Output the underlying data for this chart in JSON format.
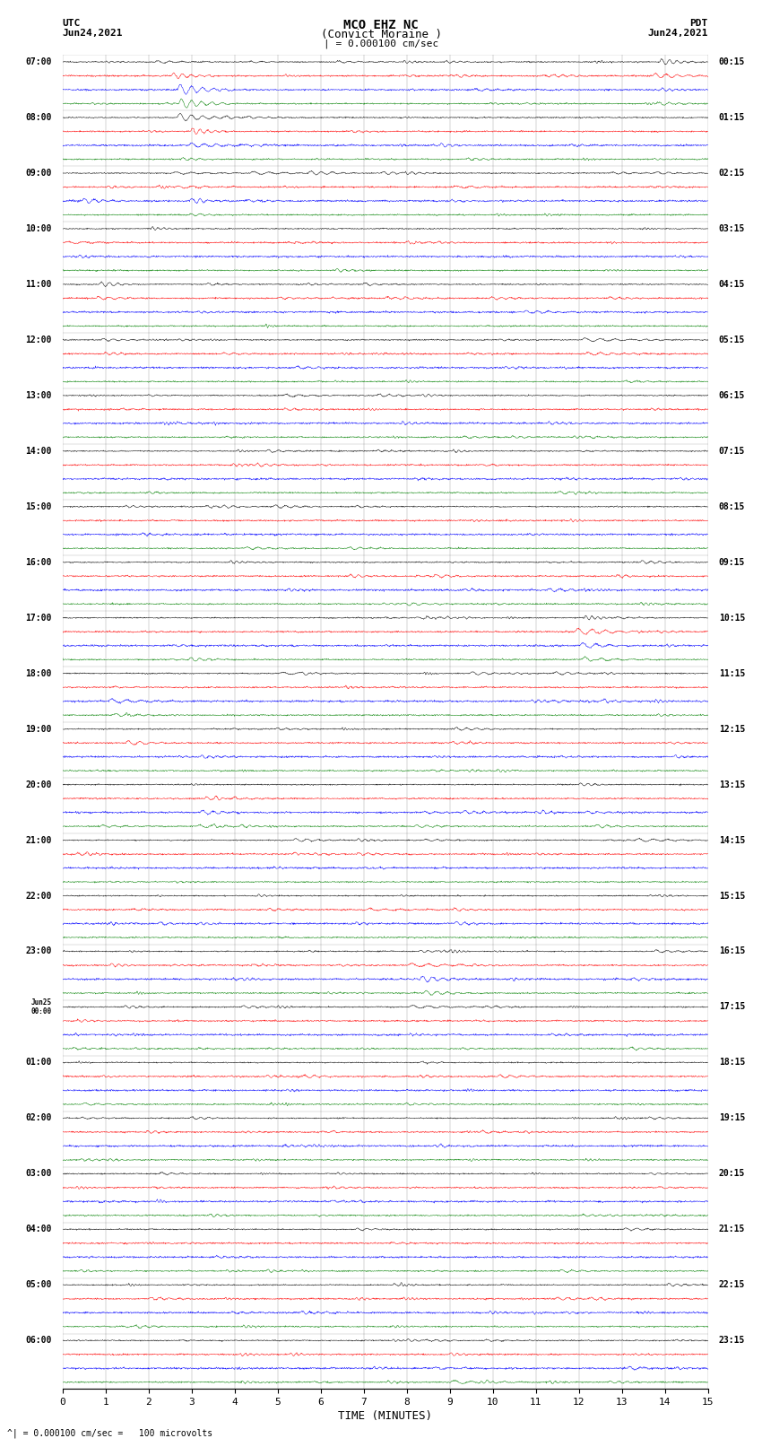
{
  "title_line1": "MCO EHZ NC",
  "title_line2": "(Convict Moraine )",
  "scale_text": "| = 0.000100 cm/sec",
  "left_header_line1": "UTC",
  "left_header_line2": "Jun24,2021",
  "right_header_line1": "PDT",
  "right_header_line2": "Jun24,2021",
  "bottom_label": "TIME (MINUTES)",
  "bottom_note": "^| = 0.000100 cm/sec =   100 microvolts",
  "xlim": [
    0,
    15
  ],
  "xticks": [
    0,
    1,
    2,
    3,
    4,
    5,
    6,
    7,
    8,
    9,
    10,
    11,
    12,
    13,
    14,
    15
  ],
  "trace_color_cycle": [
    "black",
    "red",
    "blue",
    "green"
  ],
  "left_labels": [
    [
      "07:00",
      0
    ],
    [
      "08:00",
      4
    ],
    [
      "09:00",
      8
    ],
    [
      "10:00",
      12
    ],
    [
      "11:00",
      16
    ],
    [
      "12:00",
      20
    ],
    [
      "13:00",
      24
    ],
    [
      "14:00",
      28
    ],
    [
      "15:00",
      32
    ],
    [
      "16:00",
      36
    ],
    [
      "17:00",
      40
    ],
    [
      "18:00",
      44
    ],
    [
      "19:00",
      48
    ],
    [
      "20:00",
      52
    ],
    [
      "21:00",
      56
    ],
    [
      "22:00",
      60
    ],
    [
      "23:00",
      64
    ],
    [
      "Jun25\n00:00",
      68
    ],
    [
      "01:00",
      72
    ],
    [
      "02:00",
      76
    ],
    [
      "03:00",
      80
    ],
    [
      "04:00",
      84
    ],
    [
      "05:00",
      88
    ],
    [
      "06:00",
      92
    ]
  ],
  "right_labels": [
    [
      "00:15",
      0
    ],
    [
      "01:15",
      4
    ],
    [
      "02:15",
      8
    ],
    [
      "03:15",
      12
    ],
    [
      "04:15",
      16
    ],
    [
      "05:15",
      20
    ],
    [
      "06:15",
      24
    ],
    [
      "07:15",
      28
    ],
    [
      "08:15",
      32
    ],
    [
      "09:15",
      36
    ],
    [
      "10:15",
      40
    ],
    [
      "11:15",
      44
    ],
    [
      "12:15",
      48
    ],
    [
      "13:15",
      52
    ],
    [
      "14:15",
      56
    ],
    [
      "15:15",
      60
    ],
    [
      "16:15",
      64
    ],
    [
      "17:15",
      68
    ],
    [
      "18:15",
      72
    ],
    [
      "19:15",
      76
    ],
    [
      "20:15",
      80
    ],
    [
      "21:15",
      84
    ],
    [
      "22:15",
      88
    ],
    [
      "23:15",
      92
    ]
  ],
  "n_rows": 96,
  "bg_color": "#ffffff",
  "seed": 12345
}
